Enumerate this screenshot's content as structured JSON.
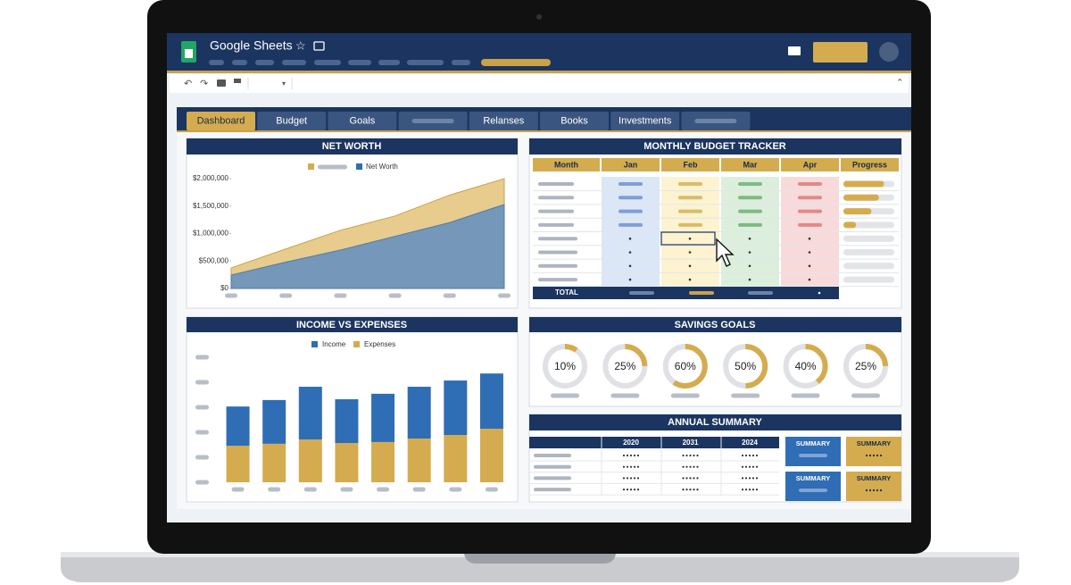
{
  "app_title": "Google Sheets",
  "tabs": [
    "Dashboard",
    "Budget",
    "Goals",
    "Relanses",
    "Books",
    "Investments"
  ],
  "chart_data": [
    {
      "type": "area",
      "title": "NET WORTH",
      "categories": [
        null,
        null,
        null,
        null,
        null,
        null
      ],
      "series": [
        {
          "color": "#e3c37a",
          "values": [
            375000,
            720000,
            1060000,
            1320000,
            1700000,
            2000000
          ]
        },
        {
          "name": "Net Worth",
          "color": "#6f93bd",
          "values": [
            245000,
            480000,
            700000,
            950000,
            1200000,
            1530000
          ]
        }
      ],
      "ylim": [
        0,
        2000000
      ],
      "yticks": [
        {
          "value": 0,
          "label": "$0"
        },
        {
          "value": 500000,
          "label": "$500,000"
        },
        {
          "value": 1000000,
          "label": "$1,000,000"
        },
        {
          "value": 1500000,
          "label": "$1,500,000"
        },
        {
          "value": 2000000,
          "label": "$2,000,000"
        }
      ]
    },
    {
      "type": "bar",
      "title": "INCOME VS EXPENSES",
      "stacked": true,
      "categories": [
        null,
        null,
        null,
        null,
        null,
        null,
        null,
        null
      ],
      "series": [
        {
          "name": "Income",
          "color": "#2f6db5",
          "values": [
            1.57,
            1.75,
            2.11,
            1.75,
            1.93,
            2.07,
            2.18,
            2.21
          ]
        },
        {
          "name": "Expenses",
          "color": "#d4ac4f",
          "values": [
            1.46,
            1.54,
            1.71,
            1.57,
            1.61,
            1.75,
            1.89,
            2.14
          ]
        }
      ],
      "ylim": [
        0,
        5
      ]
    }
  ],
  "budget_tracker": {
    "title": "MONTHLY BUDGET TRACKER",
    "headers": [
      "Month",
      "Jan",
      "Feb",
      "Mar",
      "Apr",
      "Progress"
    ],
    "total_label": "TOTAL",
    "progress": [
      80,
      70,
      55,
      25
    ]
  },
  "savings_goals": {
    "title": "SAVINGS GOALS",
    "values": [
      10,
      25,
      60,
      50,
      40,
      25
    ],
    "value_labels": [
      "10%",
      "25%",
      "60%",
      "50%",
      "40%",
      "25%"
    ]
  },
  "annual_summary": {
    "title": "ANNUAL SUMMARY",
    "years": [
      "2020",
      "2031",
      "2024"
    ],
    "cards": [
      "SUMMARY",
      "SUMMARY",
      "SUMMARY",
      "SUMMARY"
    ]
  }
}
